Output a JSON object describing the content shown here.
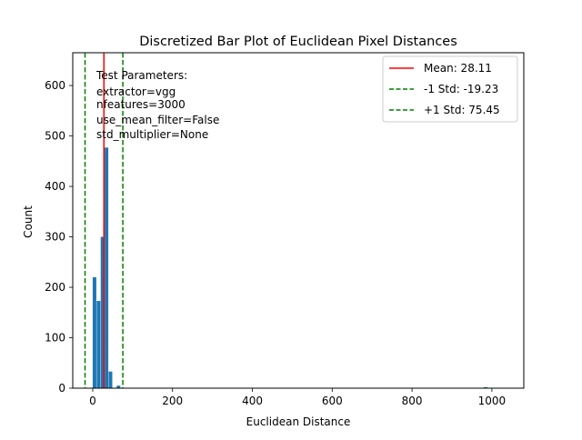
{
  "chart_data": {
    "type": "bar",
    "title": "Discretized Bar Plot of Euclidean Pixel Distances",
    "xlabel": "Euclidean Distance",
    "ylabel": "Count",
    "xlim": [
      -50,
      1080
    ],
    "ylim": [
      0,
      665
    ],
    "xticks": [
      0,
      200,
      400,
      600,
      800,
      1000
    ],
    "yticks": [
      0,
      100,
      200,
      300,
      400,
      500,
      600
    ],
    "bar_width": 10,
    "bar_color": "#1f77b4",
    "bars": [
      {
        "x": 0,
        "count": 220
      },
      {
        "x": 10,
        "count": 173
      },
      {
        "x": 20,
        "count": 300
      },
      {
        "x": 30,
        "count": 477
      },
      {
        "x": 40,
        "count": 33
      },
      {
        "x": 50,
        "count": 0
      },
      {
        "x": 60,
        "count": 5
      },
      {
        "x": 70,
        "count": 0
      },
      {
        "x": 980,
        "count": 2
      }
    ],
    "vlines": [
      {
        "label": "Mean: 28.11",
        "x": 28.11,
        "color": "#ff0000",
        "style": "solid"
      },
      {
        "label": "-1 Std: -19.23",
        "x": -19.23,
        "color": "#008000",
        "style": "dashed"
      },
      {
        "label": "+1 Std: 75.45",
        "x": 75.45,
        "color": "#008000",
        "style": "dashed"
      }
    ],
    "legend_position": "top-right",
    "annotation": [
      "Test Parameters:",
      "extractor=vgg",
      "nfeatures=3000",
      "use_mean_filter=False",
      "std_multiplier=None"
    ],
    "grid": false
  }
}
